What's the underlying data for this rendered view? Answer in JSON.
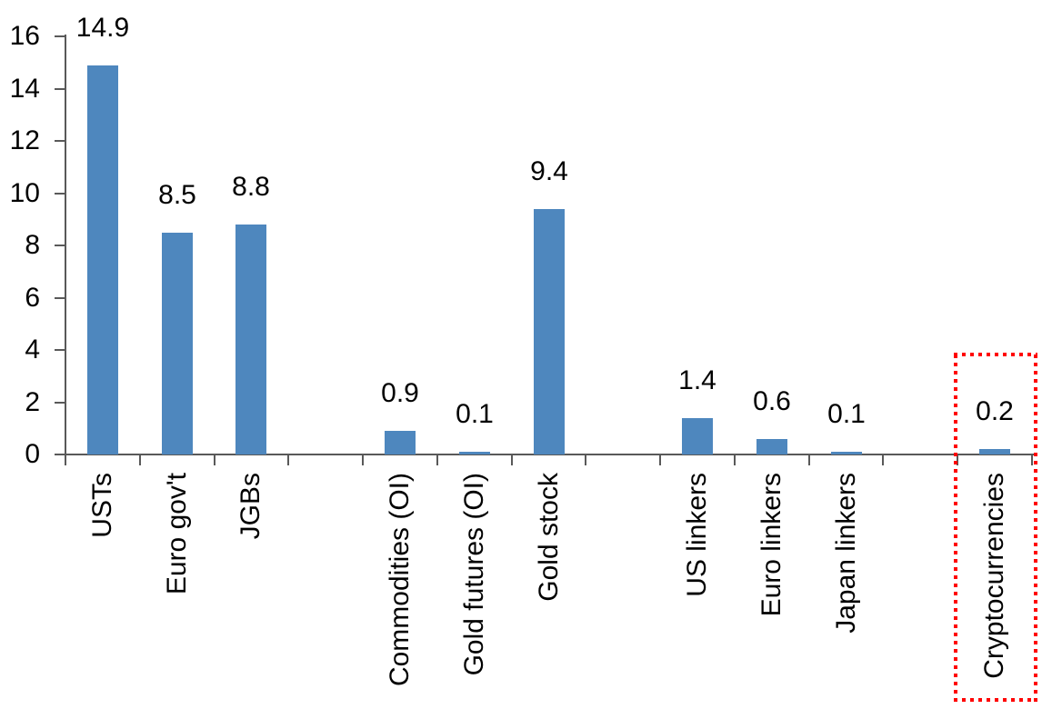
{
  "chart_data": {
    "type": "bar",
    "title": "",
    "xlabel": "",
    "ylabel": "",
    "ylim": [
      0,
      16
    ],
    "yticks": [
      0,
      2,
      4,
      6,
      8,
      10,
      12,
      14,
      16
    ],
    "grid": false,
    "legend": false,
    "bar_color": "#4E87BE",
    "axis_color": "#595959",
    "text_color": "#000000",
    "slots": [
      {
        "label": "USTs",
        "value": 14.9,
        "value_label": "14.9"
      },
      {
        "label": "Euro gov't",
        "value": 8.5,
        "value_label": "8.5"
      },
      {
        "label": "JGBs",
        "value": 8.8,
        "value_label": "8.8"
      },
      {
        "label": "",
        "value": null,
        "value_label": null
      },
      {
        "label": "Commodities (OI)",
        "value": 0.9,
        "value_label": "0.9"
      },
      {
        "label": "Gold futures (OI)",
        "value": 0.1,
        "value_label": "0.1"
      },
      {
        "label": "Gold stock",
        "value": 9.4,
        "value_label": "9.4"
      },
      {
        "label": "",
        "value": null,
        "value_label": null
      },
      {
        "label": "US linkers",
        "value": 1.4,
        "value_label": "1.4"
      },
      {
        "label": "Euro linkers",
        "value": 0.6,
        "value_label": "0.6"
      },
      {
        "label": "Japan linkers",
        "value": 0.1,
        "value_label": "0.1"
      },
      {
        "label": "",
        "value": null,
        "value_label": null
      },
      {
        "label": "Cryptocurrencies",
        "value": 0.2,
        "value_label": "0.2",
        "highlighted": true
      }
    ],
    "highlight": {
      "target": "Cryptocurrencies",
      "shape": "dotted-rectangle",
      "color": "#FF0000"
    }
  }
}
